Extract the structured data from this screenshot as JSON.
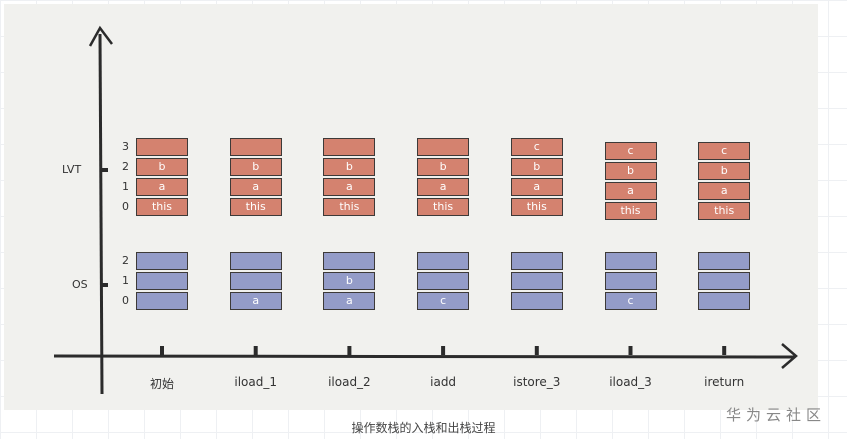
{
  "axis_labels": {
    "lvt": "LVT",
    "os": "OS"
  },
  "lvt_indices": [
    "3",
    "2",
    "1",
    "0"
  ],
  "os_indices": [
    "2",
    "1",
    "0"
  ],
  "columns": [
    {
      "label": "初始",
      "lvt": [
        "this",
        "a",
        "b",
        ""
      ],
      "os": [
        "",
        "",
        ""
      ]
    },
    {
      "label": "iload_1",
      "lvt": [
        "this",
        "a",
        "b",
        ""
      ],
      "os": [
        "a",
        "",
        ""
      ]
    },
    {
      "label": "iload_2",
      "lvt": [
        "this",
        "a",
        "b",
        ""
      ],
      "os": [
        "a",
        "b",
        ""
      ]
    },
    {
      "label": "iadd",
      "lvt": [
        "this",
        "a",
        "b",
        ""
      ],
      "os": [
        "c",
        "",
        ""
      ]
    },
    {
      "label": "istore_3",
      "lvt": [
        "this",
        "a",
        "b",
        "c"
      ],
      "os": [
        "",
        "",
        ""
      ]
    },
    {
      "label": "iload_3",
      "lvt": [
        "this",
        "a",
        "b",
        "c"
      ],
      "os": [
        "c",
        "",
        ""
      ]
    },
    {
      "label": "ireturn",
      "lvt": [
        "this",
        "a",
        "b",
        "c"
      ],
      "os": [
        "",
        "",
        ""
      ]
    }
  ],
  "colors": {
    "lvt": "#d4826f",
    "os": "#949cc8"
  },
  "caption": "操作数栈的入栈和出栈过程",
  "watermark": "华为云社区"
}
